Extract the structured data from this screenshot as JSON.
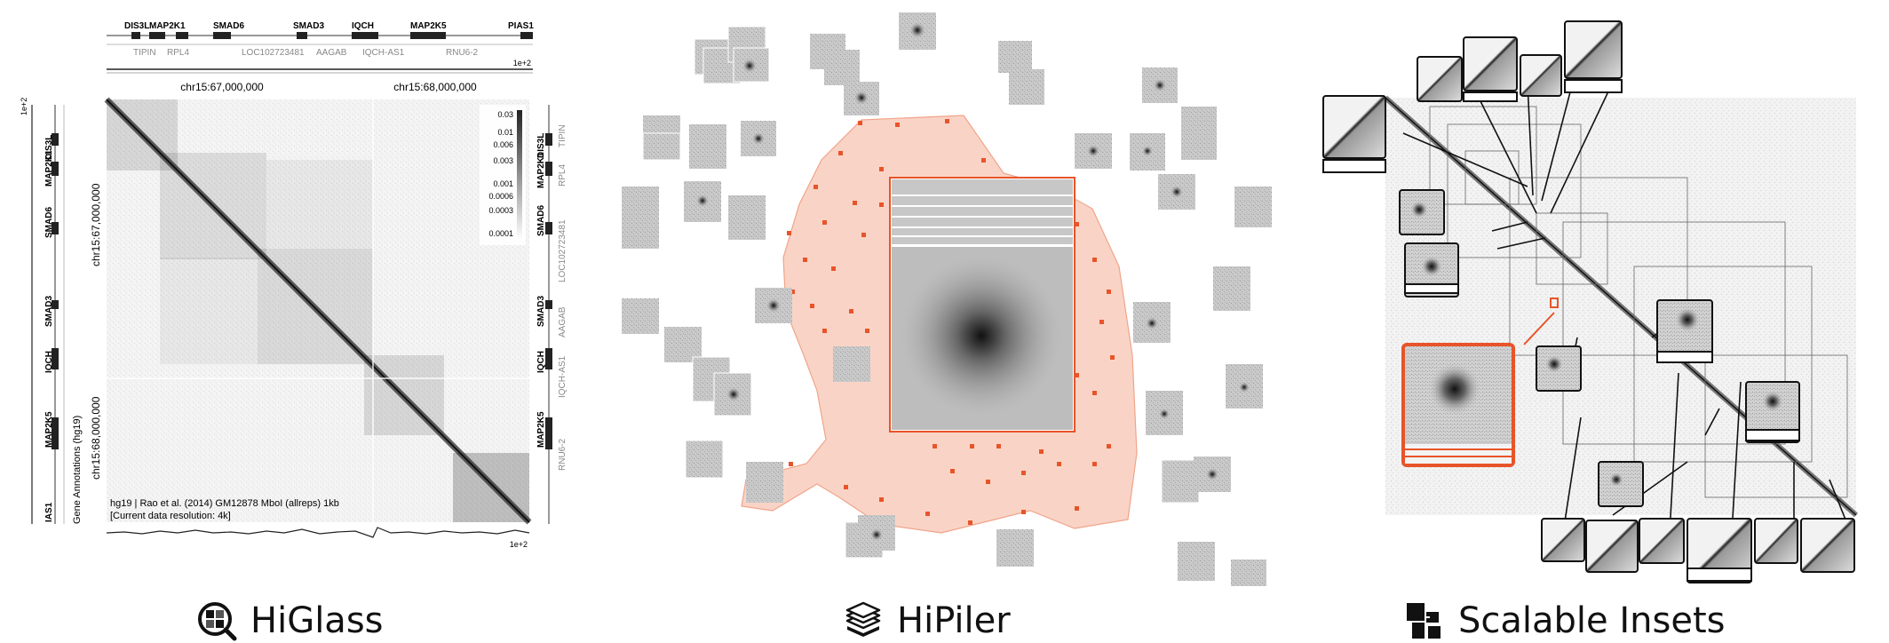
{
  "higlass": {
    "label": "HiGlass",
    "logo_icon": "magnifier-grid-icon",
    "top_genes_row1": [
      "DIS3L",
      "MAP2K1",
      "SMAD6",
      "SMAD3",
      "IQCH",
      "MAP2K5",
      "PIAS1"
    ],
    "top_genes_row2": [
      "TIPIN",
      "RPL4",
      "LOC102723481",
      "AAGAB",
      "IQCH-AS1",
      "RNU6-2"
    ],
    "left_genes": [
      "DIS3L",
      "MAP2K1",
      "SMAD6",
      "SMAD3",
      "IQCH",
      "MAP2K5",
      "IAS1"
    ],
    "right_genes_a": [
      "DIS3L",
      "MAP2K1",
      "SMAD6",
      "SMAD3",
      "IQCH",
      "MAP2K5"
    ],
    "right_genes_b": [
      "TIPIN",
      "RPL4",
      "LOC102723481",
      "AAGAB",
      "IQCH-AS1",
      "RNU6-2"
    ],
    "x_ticks": [
      "chr15:67,000,000",
      "chr15:68,000,000"
    ],
    "y_ticks": [
      "chr15:67,000,000",
      "chr15:68,000,000"
    ],
    "colorbar_ticks": [
      "0.03",
      "0.01",
      "0.006",
      "0.003",
      "0.001",
      "0.0006",
      "0.0003",
      "0.0001"
    ],
    "scale_label": "1e+2",
    "scale_label_left": "1e+2",
    "side_track_label": "Gene Annotations (hg19)",
    "info_line1": "hg19 | Rao et al. (2014) GM12878 MboI (allreps) 1kb",
    "info_line2": "[Current data resolution: 4k]",
    "corner_label": "ΊS1"
  },
  "hipiler": {
    "label": "HiPiler",
    "logo_icon": "stacked-layers-icon"
  },
  "scalable_insets": {
    "label": "Scalable Insets",
    "logo_icon": "inset-blocks-icon"
  },
  "colors": {
    "accent_orange": "#e8542a",
    "cloud_fill": "#f9d4c6",
    "matrix_dark": "#444444"
  }
}
